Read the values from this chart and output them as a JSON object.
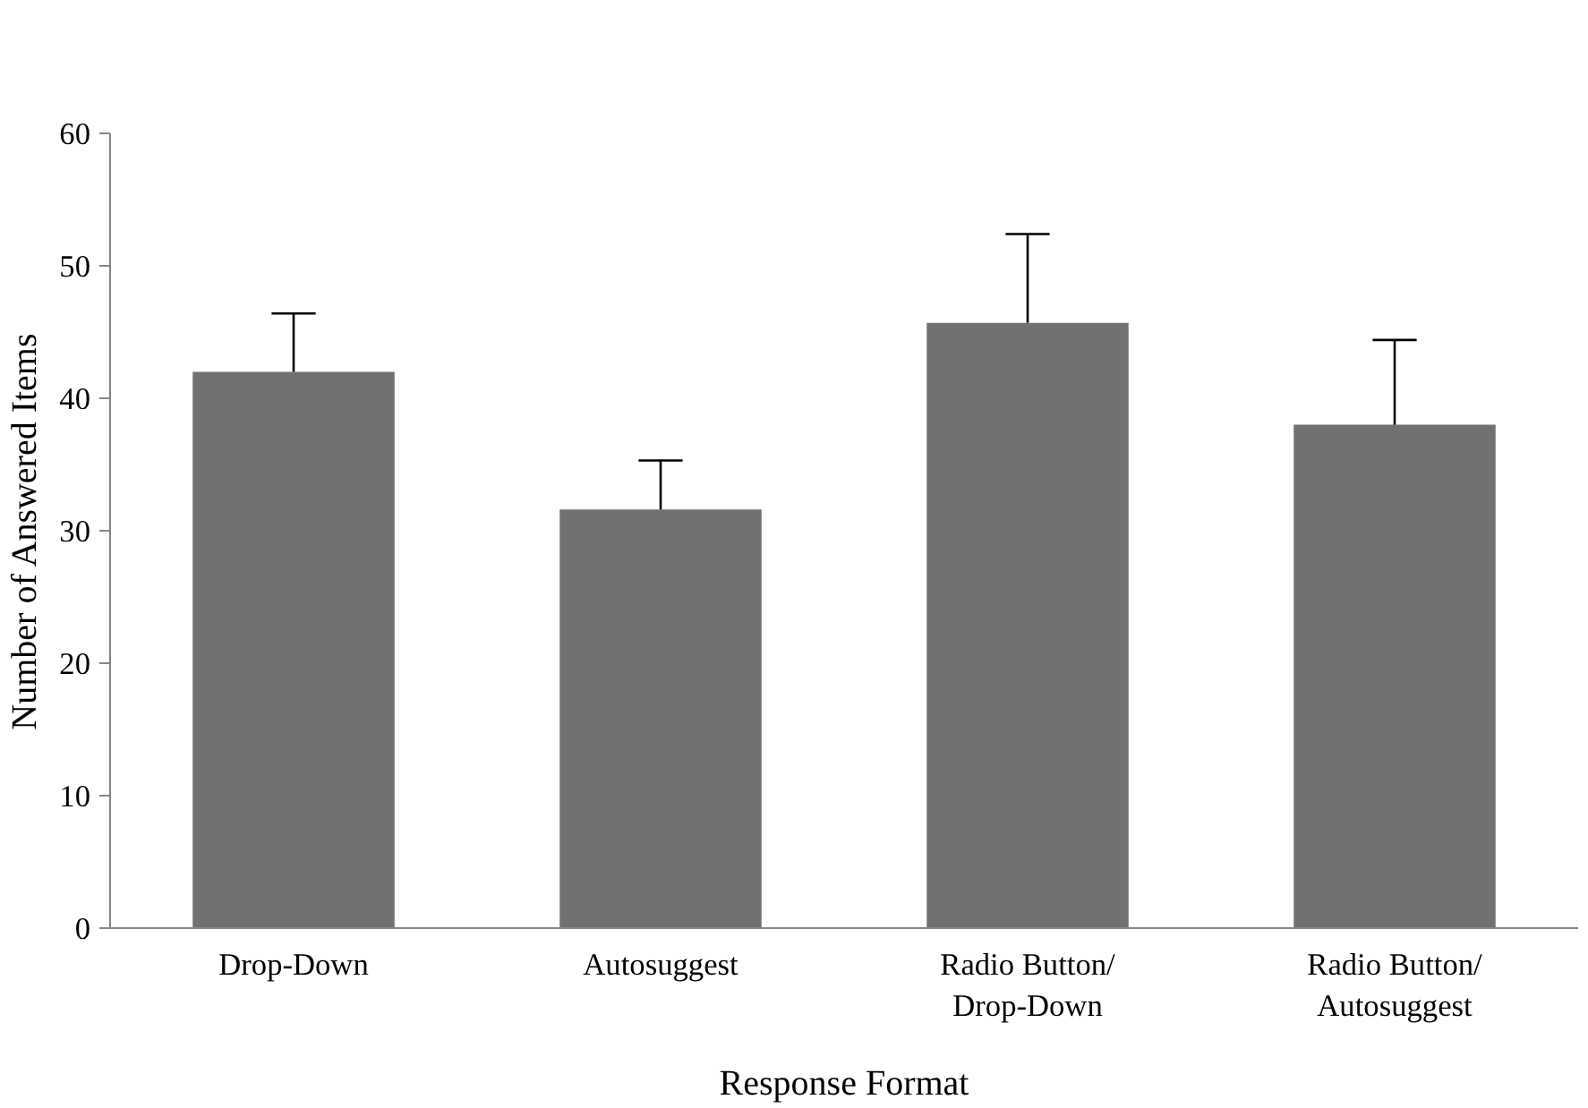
{
  "chart_data": {
    "type": "bar",
    "xlabel": "Response Format",
    "ylabel": "Number of Answered Items",
    "categories": [
      "Drop-Down",
      "Autosuggest",
      "Radio Button/\nDrop-Down",
      "Radio Button/\nAutosuggest"
    ],
    "values": [
      42,
      31.6,
      45.7,
      38
    ],
    "errors": [
      [
        42,
        46.4
      ],
      [
        31.6,
        35.3
      ],
      [
        45.7,
        52.4
      ],
      [
        38,
        44.4
      ]
    ],
    "color": "#717171",
    "ylim": [
      0,
      60
    ],
    "yticks": [
      0,
      10,
      20,
      30,
      40,
      50,
      60
    ],
    "grid": false
  }
}
